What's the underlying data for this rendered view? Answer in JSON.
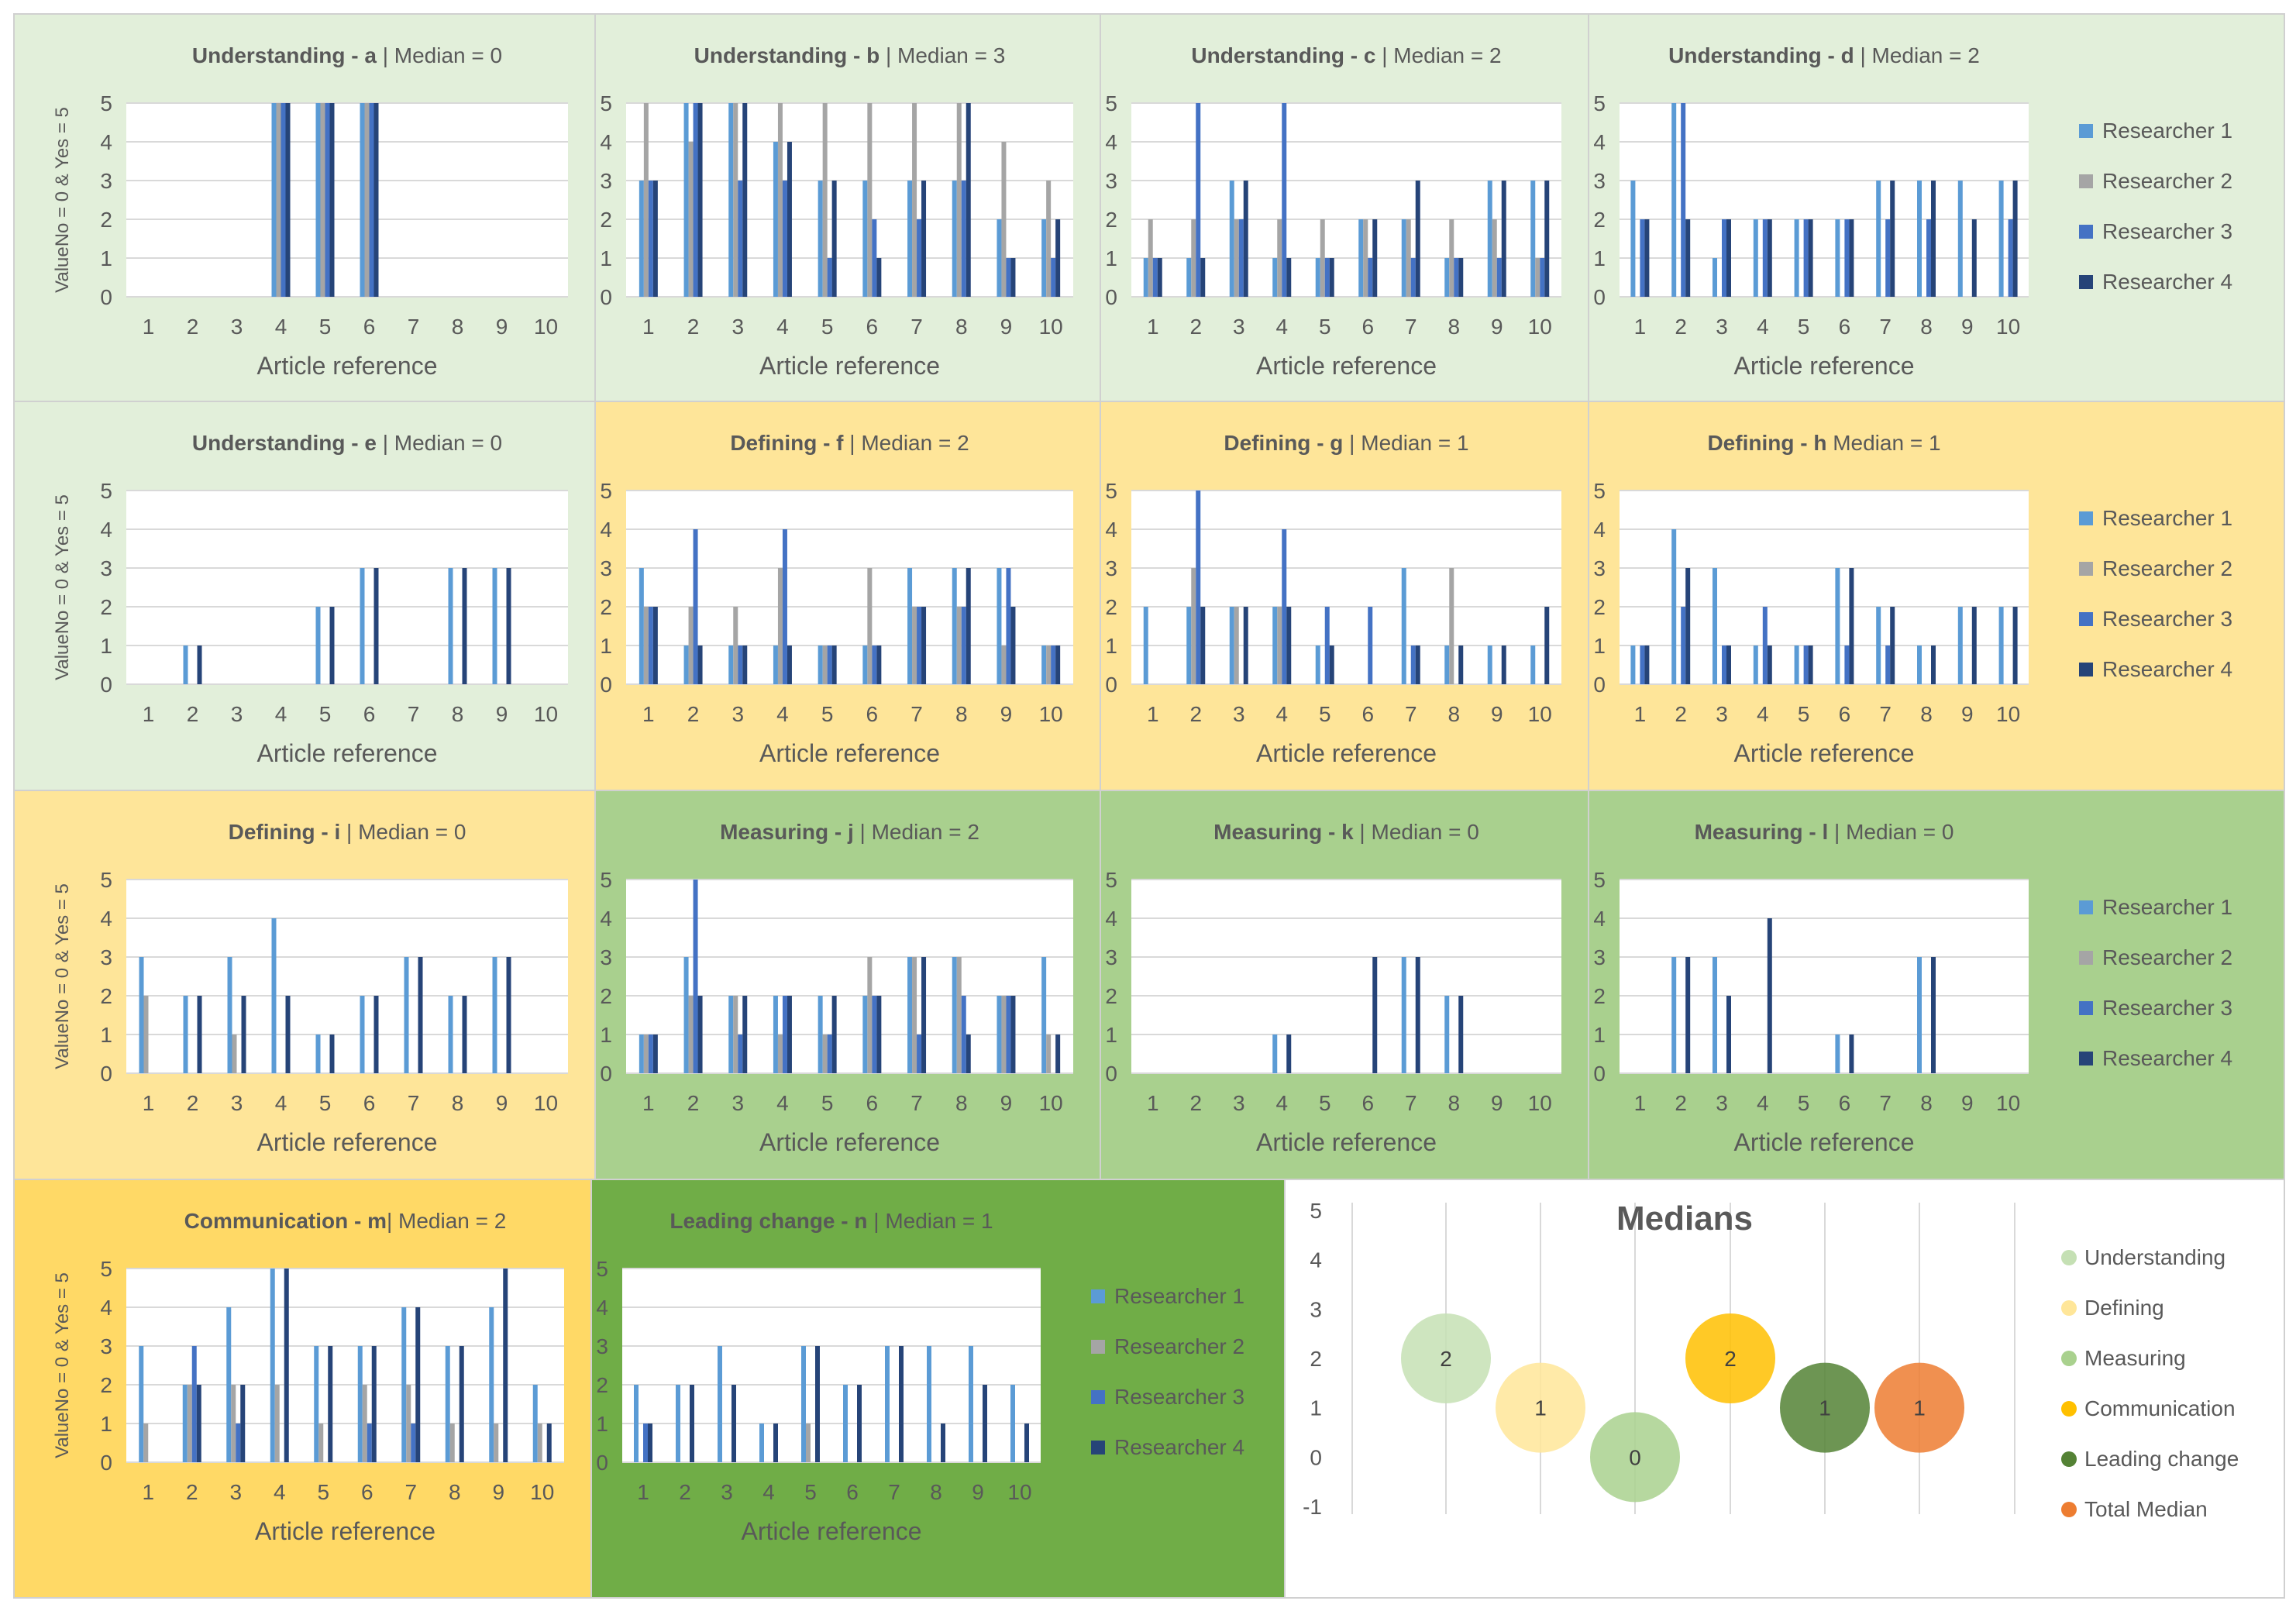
{
  "colors": {
    "researcher_1": "#5b9bd5",
    "researcher_2": "#a5a5a5",
    "researcher_3": "#4472c4",
    "researcher_4": "#264478",
    "understanding_bg": "#e2efda",
    "defining_bg": "#fee599",
    "measuring_bg": "#a9d08e",
    "communication_bg": "#ffd966",
    "leading_bg": "#70ad47",
    "understanding": "#c5e0b4",
    "defining": "#ffe699",
    "measuring": "#a9d18e",
    "communication": "#ffc000",
    "leading_change": "#548235",
    "total_median": "#ed7d31"
  },
  "common": {
    "ylabel": "ValueNo = 0 & Yes = 5",
    "xlabel": "Article reference",
    "categories": [
      "1",
      "2",
      "3",
      "4",
      "5",
      "6",
      "7",
      "8",
      "9",
      "10"
    ],
    "yticks": [
      "0",
      "1",
      "2",
      "3",
      "4",
      "5"
    ],
    "legend": [
      "Researcher 1",
      "Researcher 2",
      "Researcher 3",
      "Researcher 4"
    ]
  },
  "chart_data": [
    {
      "type": "bar",
      "id": "a",
      "title_bold": "Understanding - a",
      "title_rest": " | Median = 0",
      "ylim": [
        0,
        5
      ],
      "series": [
        {
          "name": "Researcher 1",
          "values": [
            0,
            0,
            0,
            5,
            5,
            5,
            0,
            0,
            0,
            0
          ]
        },
        {
          "name": "Researcher 2",
          "values": [
            0,
            0,
            0,
            5,
            5,
            5,
            0,
            0,
            0,
            0
          ]
        },
        {
          "name": "Researcher 3",
          "values": [
            0,
            0,
            0,
            5,
            5,
            5,
            0,
            0,
            0,
            0
          ]
        },
        {
          "name": "Researcher 4",
          "values": [
            0,
            0,
            0,
            5,
            5,
            5,
            0,
            0,
            0,
            0
          ]
        }
      ]
    },
    {
      "type": "bar",
      "id": "b",
      "title_bold": "Understanding - b",
      "title_rest": " | Median = 3",
      "ylim": [
        0,
        5
      ],
      "series": [
        {
          "name": "Researcher 1",
          "values": [
            3,
            5,
            5,
            4,
            3,
            3,
            3,
            3,
            2,
            2
          ]
        },
        {
          "name": "Researcher 2",
          "values": [
            5,
            4,
            5,
            5,
            5,
            5,
            5,
            5,
            4,
            3
          ]
        },
        {
          "name": "Researcher 3",
          "values": [
            3,
            5,
            3,
            3,
            1,
            2,
            2,
            3,
            1,
            1
          ]
        },
        {
          "name": "Researcher 4",
          "values": [
            3,
            5,
            5,
            4,
            3,
            1,
            3,
            5,
            1,
            2
          ]
        }
      ]
    },
    {
      "type": "bar",
      "id": "c",
      "title_bold": "Understanding - c",
      "title_rest": " | Median = 2",
      "ylim": [
        0,
        5
      ],
      "series": [
        {
          "name": "Researcher 1",
          "values": [
            1,
            1,
            3,
            1,
            1,
            2,
            2,
            1,
            3,
            3
          ]
        },
        {
          "name": "Researcher 2",
          "values": [
            2,
            2,
            2,
            2,
            2,
            2,
            2,
            2,
            2,
            1
          ]
        },
        {
          "name": "Researcher 3",
          "values": [
            1,
            5,
            2,
            5,
            1,
            1,
            1,
            1,
            1,
            1
          ]
        },
        {
          "name": "Researcher 4",
          "values": [
            1,
            1,
            3,
            1,
            1,
            2,
            3,
            1,
            3,
            3
          ]
        }
      ]
    },
    {
      "type": "bar",
      "id": "d",
      "title_bold": "Understanding - d",
      "title_rest": " | Median = 2",
      "ylim": [
        0,
        5
      ],
      "legend": true,
      "series": [
        {
          "name": "Researcher 1",
          "values": [
            3,
            5,
            1,
            2,
            2,
            2,
            3,
            3,
            3,
            3
          ]
        },
        {
          "name": "Researcher 2",
          "values": [
            0,
            0,
            0,
            0,
            0,
            0,
            0,
            0,
            0,
            0
          ]
        },
        {
          "name": "Researcher 3",
          "values": [
            2,
            5,
            2,
            2,
            2,
            2,
            2,
            2,
            0,
            2
          ]
        },
        {
          "name": "Researcher 4",
          "values": [
            2,
            2,
            2,
            2,
            2,
            2,
            3,
            3,
            2,
            3
          ]
        }
      ]
    },
    {
      "type": "bar",
      "id": "e",
      "title_bold": "Understanding - e",
      "title_rest": " | Median = 0",
      "ylim": [
        0,
        5
      ],
      "series": [
        {
          "name": "Researcher 1",
          "values": [
            0,
            1,
            0,
            0,
            2,
            3,
            0,
            3,
            3,
            0
          ]
        },
        {
          "name": "Researcher 2",
          "values": [
            0,
            0,
            0,
            0,
            0,
            0,
            0,
            0,
            0,
            0
          ]
        },
        {
          "name": "Researcher 3",
          "values": [
            0,
            0,
            0,
            0,
            0,
            0,
            0,
            0,
            0,
            0
          ]
        },
        {
          "name": "Researcher 4",
          "values": [
            0,
            1,
            0,
            0,
            2,
            3,
            0,
            3,
            3,
            0
          ]
        }
      ]
    },
    {
      "type": "bar",
      "id": "f",
      "title_bold": "Defining - f",
      "title_rest": " | Median = 2",
      "ylim": [
        0,
        5
      ],
      "series": [
        {
          "name": "Researcher 1",
          "values": [
            3,
            1,
            1,
            1,
            1,
            1,
            3,
            3,
            3,
            1
          ]
        },
        {
          "name": "Researcher 2",
          "values": [
            2,
            2,
            2,
            3,
            1,
            3,
            2,
            2,
            1,
            1
          ]
        },
        {
          "name": "Researcher 3",
          "values": [
            2,
            4,
            1,
            4,
            1,
            1,
            2,
            2,
            3,
            1
          ]
        },
        {
          "name": "Researcher 4",
          "values": [
            2,
            1,
            1,
            1,
            1,
            1,
            2,
            3,
            2,
            1
          ]
        }
      ]
    },
    {
      "type": "bar",
      "id": "g",
      "title_bold": "Defining - g",
      "title_rest": " | Median = 1",
      "ylim": [
        0,
        5
      ],
      "series": [
        {
          "name": "Researcher 1",
          "values": [
            2,
            2,
            2,
            2,
            1,
            0,
            3,
            1,
            1,
            1
          ]
        },
        {
          "name": "Researcher 2",
          "values": [
            0,
            3,
            2,
            2,
            0,
            0,
            0,
            3,
            0,
            0
          ]
        },
        {
          "name": "Researcher 3",
          "values": [
            0,
            5,
            0,
            4,
            2,
            2,
            1,
            0,
            0,
            0
          ]
        },
        {
          "name": "Researcher 4",
          "values": [
            0,
            2,
            2,
            2,
            1,
            0,
            1,
            1,
            1,
            2
          ]
        }
      ]
    },
    {
      "type": "bar",
      "id": "h",
      "title_bold": "Defining - h",
      "title_rest": " Median = 1",
      "ylim": [
        0,
        5
      ],
      "legend": true,
      "series": [
        {
          "name": "Researcher 1",
          "values": [
            1,
            4,
            3,
            1,
            1,
            3,
            2,
            1,
            2,
            2
          ]
        },
        {
          "name": "Researcher 2",
          "values": [
            0,
            0,
            0,
            0,
            0,
            0,
            0,
            0,
            0,
            0
          ]
        },
        {
          "name": "Researcher 3",
          "values": [
            1,
            2,
            1,
            2,
            1,
            1,
            1,
            0,
            0,
            0
          ]
        },
        {
          "name": "Researcher 4",
          "values": [
            1,
            3,
            1,
            1,
            1,
            3,
            2,
            1,
            2,
            2
          ]
        }
      ]
    },
    {
      "type": "bar",
      "id": "i",
      "title_bold": "Defining - i",
      "title_rest": " | Median = 0",
      "ylim": [
        0,
        5
      ],
      "series": [
        {
          "name": "Researcher 1",
          "values": [
            3,
            2,
            3,
            4,
            1,
            2,
            3,
            2,
            3,
            0
          ]
        },
        {
          "name": "Researcher 2",
          "values": [
            2,
            0,
            1,
            0,
            0,
            0,
            0,
            0,
            0,
            0
          ]
        },
        {
          "name": "Researcher 3",
          "values": [
            0,
            0,
            0,
            0,
            0,
            0,
            0,
            0,
            0,
            0
          ]
        },
        {
          "name": "Researcher 4",
          "values": [
            0,
            2,
            2,
            2,
            1,
            2,
            3,
            2,
            3,
            0
          ]
        }
      ]
    },
    {
      "type": "bar",
      "id": "j",
      "title_bold": "Measuring - j",
      "title_rest": " | Median = 2",
      "ylim": [
        0,
        5
      ],
      "series": [
        {
          "name": "Researcher 1",
          "values": [
            1,
            3,
            2,
            2,
            2,
            2,
            3,
            3,
            2,
            3
          ]
        },
        {
          "name": "Researcher 2",
          "values": [
            1,
            2,
            2,
            1,
            1,
            3,
            3,
            3,
            2,
            1
          ]
        },
        {
          "name": "Researcher 3",
          "values": [
            1,
            5,
            1,
            2,
            1,
            2,
            1,
            2,
            2,
            0
          ]
        },
        {
          "name": "Researcher 4",
          "values": [
            1,
            2,
            2,
            2,
            2,
            2,
            3,
            1,
            2,
            1
          ]
        }
      ]
    },
    {
      "type": "bar",
      "id": "k",
      "title_bold": "Measuring - k",
      "title_rest": " | Median = 0",
      "ylim": [
        0,
        5
      ],
      "series": [
        {
          "name": "Researcher 1",
          "values": [
            0,
            0,
            0,
            1,
            0,
            0,
            3,
            2,
            0,
            0
          ]
        },
        {
          "name": "Researcher 2",
          "values": [
            0,
            0,
            0,
            0,
            0,
            0,
            0,
            0,
            0,
            0
          ]
        },
        {
          "name": "Researcher 3",
          "values": [
            0,
            0,
            0,
            0,
            0,
            0,
            0,
            0,
            0,
            0
          ]
        },
        {
          "name": "Researcher 4",
          "values": [
            0,
            0,
            0,
            1,
            0,
            3,
            3,
            2,
            0,
            0
          ]
        }
      ]
    },
    {
      "type": "bar",
      "id": "l",
      "title_bold": "Measuring - l",
      "title_rest": " | Median = 0",
      "ylim": [
        0,
        5
      ],
      "legend": true,
      "series": [
        {
          "name": "Researcher 1",
          "values": [
            0,
            3,
            3,
            0,
            0,
            1,
            0,
            3,
            0,
            0
          ]
        },
        {
          "name": "Researcher 2",
          "values": [
            0,
            0,
            0,
            0,
            0,
            0,
            0,
            0,
            0,
            0
          ]
        },
        {
          "name": "Researcher 3",
          "values": [
            0,
            0,
            0,
            0,
            0,
            0,
            0,
            0,
            0,
            0
          ]
        },
        {
          "name": "Researcher 4",
          "values": [
            0,
            3,
            2,
            4,
            0,
            1,
            0,
            3,
            0,
            0
          ]
        }
      ]
    },
    {
      "type": "bar",
      "id": "m",
      "title_bold": "Communication - m",
      "title_rest": "| Median = 2",
      "ylim": [
        0,
        5
      ],
      "series": [
        {
          "name": "Researcher 1",
          "values": [
            3,
            2,
            4,
            5,
            3,
            3,
            4,
            3,
            4,
            2
          ]
        },
        {
          "name": "Researcher 2",
          "values": [
            1,
            2,
            2,
            2,
            1,
            2,
            2,
            1,
            1,
            1
          ]
        },
        {
          "name": "Researcher 3",
          "values": [
            0,
            3,
            1,
            0,
            0,
            1,
            1,
            0,
            0,
            0
          ]
        },
        {
          "name": "Researcher 4",
          "values": [
            0,
            2,
            2,
            5,
            3,
            3,
            4,
            3,
            5,
            1
          ]
        }
      ]
    },
    {
      "type": "bar",
      "id": "n",
      "title_bold": "Leading change - n",
      "title_rest": " | Median = 1",
      "ylim": [
        0,
        5
      ],
      "legend": true,
      "series": [
        {
          "name": "Researcher 1",
          "values": [
            2,
            2,
            3,
            1,
            3,
            2,
            3,
            3,
            3,
            2
          ]
        },
        {
          "name": "Researcher 2",
          "values": [
            0,
            0,
            0,
            0,
            1,
            0,
            0,
            0,
            0,
            0
          ]
        },
        {
          "name": "Researcher 3",
          "values": [
            1,
            0,
            0,
            0,
            0,
            0,
            0,
            0,
            0,
            0
          ]
        },
        {
          "name": "Researcher 4",
          "values": [
            1,
            2,
            2,
            1,
            3,
            2,
            3,
            1,
            2,
            1
          ]
        }
      ]
    },
    {
      "type": "bubble",
      "id": "medians",
      "title": "Medians",
      "ylim": [
        -1,
        5
      ],
      "yticks": [
        "5",
        "4",
        "3",
        "2",
        "1",
        "0",
        "-1"
      ],
      "points": [
        {
          "name": "Understanding",
          "value": 2,
          "label": "2",
          "color": "#c5e0b4"
        },
        {
          "name": "Defining",
          "value": 1,
          "label": "1",
          "color": "#ffe699"
        },
        {
          "name": "Measuring",
          "value": 0,
          "label": "0",
          "color": "#a9d18e"
        },
        {
          "name": "Communication",
          "value": 2,
          "label": "2",
          "color": "#ffc000"
        },
        {
          "name": "Leading change",
          "value": 1,
          "label": "1",
          "color": "#548235"
        },
        {
          "name": "Total Median",
          "value": 1,
          "label": "1",
          "color": "#ed7d31"
        }
      ]
    }
  ]
}
